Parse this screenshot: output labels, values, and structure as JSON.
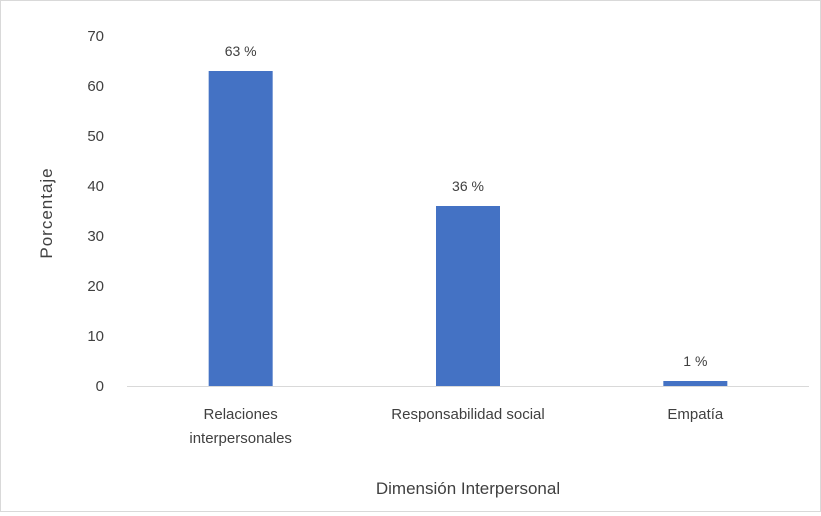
{
  "chart_data": {
    "type": "bar",
    "title": "",
    "xlabel": "Dimensión Interpersonal",
    "ylabel": "Porcentaje",
    "ylim": [
      0,
      70
    ],
    "yticks": [
      "0",
      "10",
      "20",
      "30",
      "40",
      "50",
      "60",
      "70"
    ],
    "yticks_values": [
      0,
      10,
      20,
      30,
      40,
      50,
      60,
      70
    ],
    "grid": false,
    "legend": "none",
    "bar_color": "#4472c4",
    "categories": [
      [
        "Relaciones",
        "interpersonales"
      ],
      [
        "Responsabilidad social"
      ],
      [
        "Empatía"
      ]
    ],
    "values": [
      63,
      36,
      1
    ],
    "data_labels": [
      "63 %",
      "36 %",
      "1 %"
    ]
  }
}
